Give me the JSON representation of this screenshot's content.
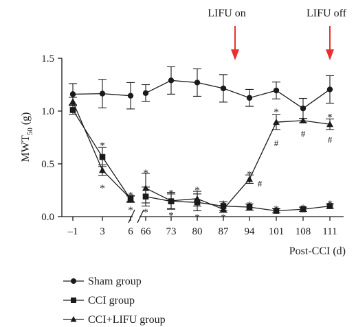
{
  "chart_data": {
    "type": "line",
    "xlabel": "Post-CCI (d)",
    "ylabel_main": "MWT",
    "ylabel_sub": "50",
    "ylabel_unit": " (g)",
    "x_categories": [
      "–1",
      "3",
      "6",
      "66",
      "73",
      "80",
      "87",
      "94",
      "101",
      "108",
      "111"
    ],
    "axis_break": "between 6 and 66",
    "y_ticks": [
      "0.0",
      "0.5",
      "1.0",
      "1.5"
    ],
    "ylim": [
      0,
      1.5
    ],
    "grid": false,
    "legend_position": "bottom-left",
    "series": [
      {
        "name": "Sham group",
        "marker": "circle",
        "values": [
          1.16,
          1.165,
          1.145,
          1.17,
          1.29,
          1.27,
          1.215,
          1.125,
          1.195,
          1.025,
          1.205
        ],
        "errors": [
          0.1,
          0.135,
          0.125,
          0.08,
          0.13,
          0.13,
          0.13,
          0.08,
          0.08,
          0.095,
          0.13
        ]
      },
      {
        "name": "CCI group",
        "marker": "square",
        "values": [
          1.01,
          0.565,
          0.165,
          0.19,
          0.145,
          0.135,
          0.1,
          0.09,
          0.055,
          0.07,
          0.1
        ],
        "errors": [
          0.04,
          0.09,
          0.03,
          0.09,
          0.07,
          0.08,
          0.04,
          0.03,
          0.02,
          0.02,
          0.02
        ]
      },
      {
        "name": "CCI+LIFU group",
        "marker": "triangle",
        "values": [
          1.09,
          0.44,
          0.17,
          0.27,
          0.15,
          0.17,
          0.07,
          0.355,
          0.895,
          0.91,
          0.875
        ],
        "errors": [
          0.04,
          0.05,
          0.03,
          0.14,
          0.08,
          0.07,
          0.03,
          0.04,
          0.07,
          0.02,
          0.05
        ]
      }
    ],
    "significance": [
      {
        "symbol": "*",
        "x": "3",
        "y": 0.7
      },
      {
        "symbol": "*",
        "x": "3",
        "y": 0.3
      },
      {
        "symbol": "*",
        "x": "6",
        "y": 0.23
      },
      {
        "symbol": "*",
        "x": "6",
        "y": 0.09
      },
      {
        "symbol": "*",
        "x": "66",
        "y": 0.44
      },
      {
        "symbol": "*",
        "x": "66",
        "y": 0.07
      },
      {
        "symbol": "*",
        "x": "73",
        "y": 0.25
      },
      {
        "symbol": "*",
        "x": "73",
        "y": 0.04
      },
      {
        "symbol": "*",
        "x": "80",
        "y": 0.28
      },
      {
        "symbol": "*",
        "x": "80",
        "y": 0.02
      },
      {
        "symbol": "*",
        "x": "87",
        "y": 0.15
      },
      {
        "symbol": "*",
        "x": "87",
        "y": 0.02
      },
      {
        "symbol": "*",
        "x": "94",
        "y": 0.43
      },
      {
        "symbol": "#",
        "x": "94",
        "y": 0.315
      },
      {
        "symbol": "*",
        "x": "94",
        "y": 0.14
      },
      {
        "symbol": "*",
        "x": "101",
        "y": 1.02
      },
      {
        "symbol": "#",
        "x": "101",
        "y": 0.7
      },
      {
        "symbol": "*",
        "x": "101",
        "y": 0.1
      },
      {
        "symbol": "#",
        "x": "108",
        "y": 0.79
      },
      {
        "symbol": "*",
        "x": "108",
        "y": 0.11
      },
      {
        "symbol": "*",
        "x": "111",
        "y": 0.97
      },
      {
        "symbol": "#",
        "x": "111",
        "y": 0.73
      },
      {
        "symbol": "*",
        "x": "111",
        "y": 0.15
      }
    ],
    "annotations": [
      {
        "text": "LIFU on",
        "arrow_x": "87-94",
        "color": "#e8312f"
      },
      {
        "text": "LIFU off",
        "arrow_x": "111",
        "color": "#e8312f"
      }
    ]
  }
}
